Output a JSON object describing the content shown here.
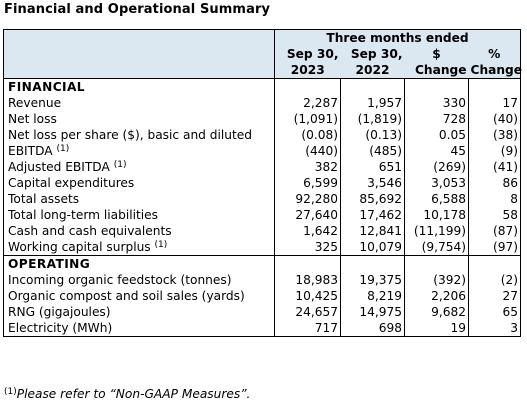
{
  "title": "Financial and Operational Summary",
  "header": {
    "period": "Three months ended",
    "col1": [
      "Sep 30,",
      "2023"
    ],
    "col2": [
      "Sep 30,",
      "2022"
    ],
    "col3": [
      "$",
      "Change"
    ],
    "col4": [
      "%",
      "Change"
    ]
  },
  "financial": {
    "heading": "FINANCIAL",
    "rows": [
      {
        "label": "Revenue",
        "sup": "",
        "v": [
          "2,287",
          "1,957",
          "330",
          "17"
        ]
      },
      {
        "label": "Net loss",
        "sup": "",
        "v": [
          "(1,091)",
          "(1,819)",
          "728",
          "(40)"
        ]
      },
      {
        "label": "Net loss per share ($), basic and diluted",
        "sup": "",
        "v": [
          "(0.08)",
          "(0.13)",
          "0.05",
          "(38)"
        ]
      },
      {
        "label": "EBITDA",
        "sup": "(1)",
        "v": [
          "(440)",
          "(485)",
          "45",
          "(9)"
        ]
      },
      {
        "label": "Adjusted EBITDA",
        "sup": "(1)",
        "v": [
          "382",
          "651",
          "(269)",
          "(41)"
        ]
      },
      {
        "label": "Capital expenditures",
        "sup": "",
        "v": [
          "6,599",
          "3,546",
          "3,053",
          "86"
        ]
      },
      {
        "label": "Total assets",
        "sup": "",
        "v": [
          "92,280",
          "85,692",
          "6,588",
          "8"
        ]
      },
      {
        "label": "Total long-term liabilities",
        "sup": "",
        "v": [
          "27,640",
          "17,462",
          "10,178",
          "58"
        ]
      },
      {
        "label": "Cash and cash equivalents",
        "sup": "",
        "v": [
          "1,642",
          "12,841",
          "(11,199)",
          "(87)"
        ]
      },
      {
        "label": "Working capital surplus",
        "sup": "(1)",
        "v": [
          "325",
          "10,079",
          "(9,754)",
          "(97)"
        ]
      }
    ]
  },
  "operating": {
    "heading": "OPERATING",
    "rows": [
      {
        "label": "Incoming organic feedstock (tonnes)",
        "v": [
          "18,983",
          "19,375",
          "(392)",
          "(2)"
        ]
      },
      {
        "label": "Organic compost and soil sales (yards)",
        "v": [
          "10,425",
          "8,219",
          "2,206",
          "27"
        ]
      },
      {
        "label": "RNG (gigajoules)",
        "v": [
          "24,657",
          "14,975",
          "9,682",
          "65"
        ]
      },
      {
        "label": "Electricity (MWh)",
        "v": [
          "717",
          "698",
          "19",
          "3"
        ]
      }
    ]
  },
  "footnote": {
    "sup": "(1)",
    "text": "Please refer to “Non-GAAP Measures”."
  }
}
